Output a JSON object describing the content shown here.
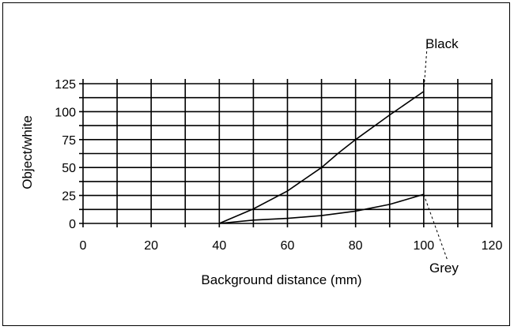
{
  "chart_data": {
    "type": "line",
    "title": "",
    "xlabel": "Background distance (mm)",
    "ylabel": "Object/white",
    "xlim": [
      0,
      120
    ],
    "ylim": [
      0,
      125
    ],
    "x_ticks": [
      "0",
      "20",
      "40",
      "60",
      "80",
      "100",
      "120"
    ],
    "y_ticks": [
      "0",
      "25",
      "50",
      "75",
      "100",
      "125"
    ],
    "grid": true,
    "series": [
      {
        "name": "Black",
        "x": [
          40,
          50,
          60,
          70,
          75,
          80,
          90,
          100
        ],
        "y": [
          0,
          13,
          29,
          50,
          63,
          75,
          97,
          118
        ]
      },
      {
        "name": "Grey",
        "x": [
          40,
          50,
          60,
          70,
          80,
          90,
          100
        ],
        "y": [
          0,
          3,
          4.5,
          7,
          11,
          17,
          26
        ]
      }
    ]
  }
}
